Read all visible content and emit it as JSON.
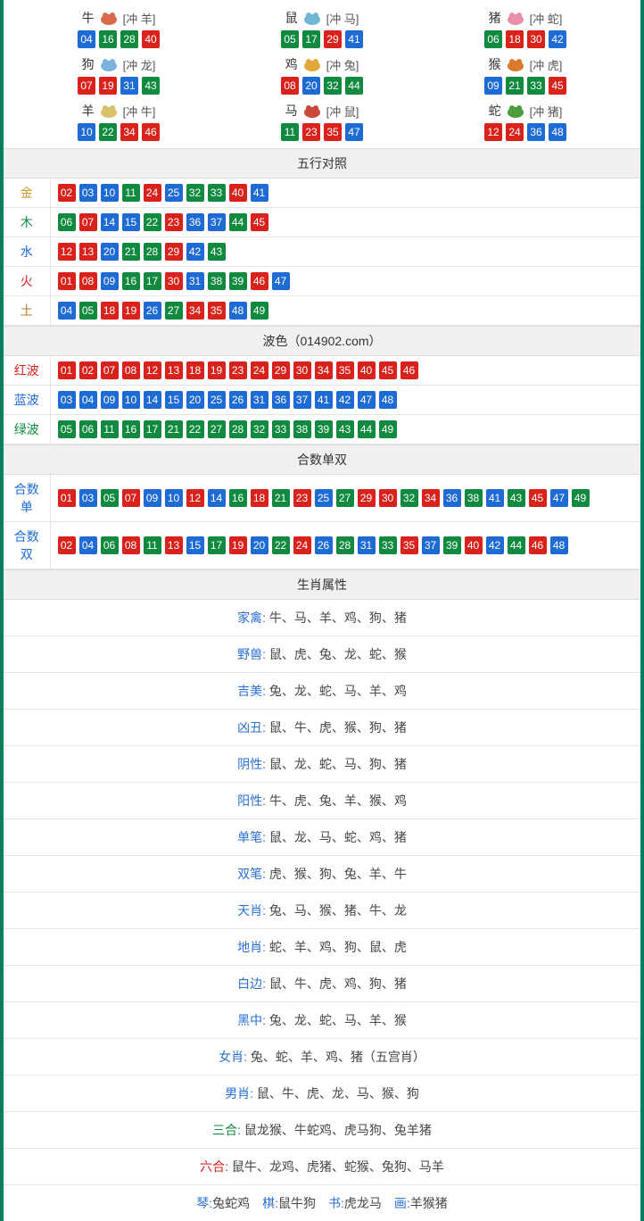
{
  "colors": {
    "red": "#d9221c",
    "blue": "#1e6bd6",
    "green": "#0f8a3f",
    "border": "#008060",
    "header_bg": "#f0f0f0",
    "line": "#e5e5e5",
    "text": "#333333",
    "label_blue": "#2a6fd6"
  },
  "zodiac": [
    {
      "name": "牛",
      "clash": "[冲 羊]",
      "icon_color": "#d96b4a",
      "balls": [
        [
          "04",
          "blue"
        ],
        [
          "16",
          "green"
        ],
        [
          "28",
          "green"
        ],
        [
          "40",
          "red"
        ]
      ]
    },
    {
      "name": "鼠",
      "clash": "[冲 马]",
      "icon_color": "#6fb8d3",
      "balls": [
        [
          "05",
          "green"
        ],
        [
          "17",
          "green"
        ],
        [
          "29",
          "red"
        ],
        [
          "41",
          "blue"
        ]
      ]
    },
    {
      "name": "猪",
      "clash": "[冲 蛇]",
      "icon_color": "#e98fa8",
      "balls": [
        [
          "06",
          "green"
        ],
        [
          "18",
          "red"
        ],
        [
          "30",
          "red"
        ],
        [
          "42",
          "blue"
        ]
      ]
    },
    {
      "name": "狗",
      "clash": "[冲 龙]",
      "icon_color": "#7bb3e0",
      "balls": [
        [
          "07",
          "red"
        ],
        [
          "19",
          "red"
        ],
        [
          "31",
          "blue"
        ],
        [
          "43",
          "green"
        ]
      ]
    },
    {
      "name": "鸡",
      "clash": "[冲 兔]",
      "icon_color": "#e0a83a",
      "balls": [
        [
          "08",
          "red"
        ],
        [
          "20",
          "blue"
        ],
        [
          "32",
          "green"
        ],
        [
          "44",
          "green"
        ]
      ]
    },
    {
      "name": "猴",
      "clash": "[冲 虎]",
      "icon_color": "#d97a2e",
      "balls": [
        [
          "09",
          "blue"
        ],
        [
          "21",
          "green"
        ],
        [
          "33",
          "green"
        ],
        [
          "45",
          "red"
        ]
      ]
    },
    {
      "name": "羊",
      "clash": "[冲 牛]",
      "icon_color": "#d9c06b",
      "balls": [
        [
          "10",
          "blue"
        ],
        [
          "22",
          "green"
        ],
        [
          "34",
          "red"
        ],
        [
          "46",
          "red"
        ]
      ]
    },
    {
      "name": "马",
      "clash": "[冲 鼠]",
      "icon_color": "#c94a3a",
      "balls": [
        [
          "11",
          "green"
        ],
        [
          "23",
          "red"
        ],
        [
          "35",
          "red"
        ],
        [
          "47",
          "blue"
        ]
      ]
    },
    {
      "name": "蛇",
      "clash": "[冲 猪]",
      "icon_color": "#4a9d3a",
      "balls": [
        [
          "12",
          "red"
        ],
        [
          "24",
          "red"
        ],
        [
          "36",
          "blue"
        ],
        [
          "48",
          "blue"
        ]
      ]
    }
  ],
  "sections": {
    "wuxing_title": "五行对照",
    "bose_title": "波色（014902.com）",
    "heshu_title": "合数单双",
    "shuxing_title": "生肖属性"
  },
  "wuxing": [
    {
      "label": "金",
      "label_color": "#c79a2e",
      "balls": [
        [
          "02",
          "red"
        ],
        [
          "03",
          "blue"
        ],
        [
          "10",
          "blue"
        ],
        [
          "11",
          "green"
        ],
        [
          "24",
          "red"
        ],
        [
          "25",
          "blue"
        ],
        [
          "32",
          "green"
        ],
        [
          "33",
          "green"
        ],
        [
          "40",
          "red"
        ],
        [
          "41",
          "blue"
        ]
      ]
    },
    {
      "label": "木",
      "label_color": "#0f8a3f",
      "balls": [
        [
          "06",
          "green"
        ],
        [
          "07",
          "red"
        ],
        [
          "14",
          "blue"
        ],
        [
          "15",
          "blue"
        ],
        [
          "22",
          "green"
        ],
        [
          "23",
          "red"
        ],
        [
          "36",
          "blue"
        ],
        [
          "37",
          "blue"
        ],
        [
          "44",
          "green"
        ],
        [
          "45",
          "red"
        ]
      ]
    },
    {
      "label": "水",
      "label_color": "#1e6bd6",
      "balls": [
        [
          "12",
          "red"
        ],
        [
          "13",
          "red"
        ],
        [
          "20",
          "blue"
        ],
        [
          "21",
          "green"
        ],
        [
          "28",
          "green"
        ],
        [
          "29",
          "red"
        ],
        [
          "42",
          "blue"
        ],
        [
          "43",
          "green"
        ]
      ]
    },
    {
      "label": "火",
      "label_color": "#d9221c",
      "balls": [
        [
          "01",
          "red"
        ],
        [
          "08",
          "red"
        ],
        [
          "09",
          "blue"
        ],
        [
          "16",
          "green"
        ],
        [
          "17",
          "green"
        ],
        [
          "30",
          "red"
        ],
        [
          "31",
          "blue"
        ],
        [
          "38",
          "green"
        ],
        [
          "39",
          "green"
        ],
        [
          "46",
          "red"
        ],
        [
          "47",
          "blue"
        ]
      ]
    },
    {
      "label": "土",
      "label_color": "#b07c2e",
      "balls": [
        [
          "04",
          "blue"
        ],
        [
          "05",
          "green"
        ],
        [
          "18",
          "red"
        ],
        [
          "19",
          "red"
        ],
        [
          "26",
          "blue"
        ],
        [
          "27",
          "green"
        ],
        [
          "34",
          "red"
        ],
        [
          "35",
          "red"
        ],
        [
          "48",
          "blue"
        ],
        [
          "49",
          "green"
        ]
      ]
    }
  ],
  "bose": [
    {
      "label": "红波",
      "label_color": "#d9221c",
      "balls": [
        [
          "01",
          "red"
        ],
        [
          "02",
          "red"
        ],
        [
          "07",
          "red"
        ],
        [
          "08",
          "red"
        ],
        [
          "12",
          "red"
        ],
        [
          "13",
          "red"
        ],
        [
          "18",
          "red"
        ],
        [
          "19",
          "red"
        ],
        [
          "23",
          "red"
        ],
        [
          "24",
          "red"
        ],
        [
          "29",
          "red"
        ],
        [
          "30",
          "red"
        ],
        [
          "34",
          "red"
        ],
        [
          "35",
          "red"
        ],
        [
          "40",
          "red"
        ],
        [
          "45",
          "red"
        ],
        [
          "46",
          "red"
        ]
      ]
    },
    {
      "label": "蓝波",
      "label_color": "#1e6bd6",
      "balls": [
        [
          "03",
          "blue"
        ],
        [
          "04",
          "blue"
        ],
        [
          "09",
          "blue"
        ],
        [
          "10",
          "blue"
        ],
        [
          "14",
          "blue"
        ],
        [
          "15",
          "blue"
        ],
        [
          "20",
          "blue"
        ],
        [
          "25",
          "blue"
        ],
        [
          "26",
          "blue"
        ],
        [
          "31",
          "blue"
        ],
        [
          "36",
          "blue"
        ],
        [
          "37",
          "blue"
        ],
        [
          "41",
          "blue"
        ],
        [
          "42",
          "blue"
        ],
        [
          "47",
          "blue"
        ],
        [
          "48",
          "blue"
        ]
      ]
    },
    {
      "label": "绿波",
      "label_color": "#0f8a3f",
      "balls": [
        [
          "05",
          "green"
        ],
        [
          "06",
          "green"
        ],
        [
          "11",
          "green"
        ],
        [
          "16",
          "green"
        ],
        [
          "17",
          "green"
        ],
        [
          "21",
          "green"
        ],
        [
          "22",
          "green"
        ],
        [
          "27",
          "green"
        ],
        [
          "28",
          "green"
        ],
        [
          "32",
          "green"
        ],
        [
          "33",
          "green"
        ],
        [
          "38",
          "green"
        ],
        [
          "39",
          "green"
        ],
        [
          "43",
          "green"
        ],
        [
          "44",
          "green"
        ],
        [
          "49",
          "green"
        ]
      ]
    }
  ],
  "heshu": [
    {
      "label": "合数单",
      "label_color": "#1e6bd6",
      "balls": [
        [
          "01",
          "red"
        ],
        [
          "03",
          "blue"
        ],
        [
          "05",
          "green"
        ],
        [
          "07",
          "red"
        ],
        [
          "09",
          "blue"
        ],
        [
          "10",
          "blue"
        ],
        [
          "12",
          "red"
        ],
        [
          "14",
          "blue"
        ],
        [
          "16",
          "green"
        ],
        [
          "18",
          "red"
        ],
        [
          "21",
          "green"
        ],
        [
          "23",
          "red"
        ],
        [
          "25",
          "blue"
        ],
        [
          "27",
          "green"
        ],
        [
          "29",
          "red"
        ],
        [
          "30",
          "red"
        ],
        [
          "32",
          "green"
        ],
        [
          "34",
          "red"
        ],
        [
          "36",
          "blue"
        ],
        [
          "38",
          "green"
        ],
        [
          "41",
          "blue"
        ],
        [
          "43",
          "green"
        ],
        [
          "45",
          "red"
        ],
        [
          "47",
          "blue"
        ],
        [
          "49",
          "green"
        ]
      ]
    },
    {
      "label": "合数双",
      "label_color": "#1e6bd6",
      "balls": [
        [
          "02",
          "red"
        ],
        [
          "04",
          "blue"
        ],
        [
          "06",
          "green"
        ],
        [
          "08",
          "red"
        ],
        [
          "11",
          "green"
        ],
        [
          "13",
          "red"
        ],
        [
          "15",
          "blue"
        ],
        [
          "17",
          "green"
        ],
        [
          "19",
          "red"
        ],
        [
          "20",
          "blue"
        ],
        [
          "22",
          "green"
        ],
        [
          "24",
          "red"
        ],
        [
          "26",
          "blue"
        ],
        [
          "28",
          "green"
        ],
        [
          "31",
          "blue"
        ],
        [
          "33",
          "green"
        ],
        [
          "35",
          "red"
        ],
        [
          "37",
          "blue"
        ],
        [
          "39",
          "green"
        ],
        [
          "40",
          "red"
        ],
        [
          "42",
          "blue"
        ],
        [
          "44",
          "green"
        ],
        [
          "46",
          "red"
        ],
        [
          "48",
          "blue"
        ]
      ]
    }
  ],
  "shuxing": [
    {
      "label": "家禽:",
      "label_color": "#2a6fd6",
      "value": "牛、马、羊、鸡、狗、猪"
    },
    {
      "label": "野兽:",
      "label_color": "#2a6fd6",
      "value": "鼠、虎、兔、龙、蛇、猴"
    },
    {
      "label": "吉美:",
      "label_color": "#2a6fd6",
      "value": "兔、龙、蛇、马、羊、鸡"
    },
    {
      "label": "凶丑:",
      "label_color": "#2a6fd6",
      "value": "鼠、牛、虎、猴、狗、猪"
    },
    {
      "label": "阴性:",
      "label_color": "#2a6fd6",
      "value": "鼠、龙、蛇、马、狗、猪"
    },
    {
      "label": "阳性:",
      "label_color": "#2a6fd6",
      "value": "牛、虎、兔、羊、猴、鸡"
    },
    {
      "label": "单笔:",
      "label_color": "#2a6fd6",
      "value": "鼠、龙、马、蛇、鸡、猪"
    },
    {
      "label": "双笔:",
      "label_color": "#2a6fd6",
      "value": "虎、猴、狗、兔、羊、牛"
    },
    {
      "label": "天肖:",
      "label_color": "#2a6fd6",
      "value": "兔、马、猴、猪、牛、龙"
    },
    {
      "label": "地肖:",
      "label_color": "#2a6fd6",
      "value": "蛇、羊、鸡、狗、鼠、虎"
    },
    {
      "label": "白边:",
      "label_color": "#2a6fd6",
      "value": "鼠、牛、虎、鸡、狗、猪"
    },
    {
      "label": "黑中:",
      "label_color": "#2a6fd6",
      "value": "兔、龙、蛇、马、羊、猴"
    },
    {
      "label": "女肖:",
      "label_color": "#2a6fd6",
      "value": "兔、蛇、羊、鸡、猪（五宫肖）"
    },
    {
      "label": "男肖:",
      "label_color": "#2a6fd6",
      "value": "鼠、牛、虎、龙、马、猴、狗"
    },
    {
      "label": "三合:",
      "label_color": "#0f8a3f",
      "value": "鼠龙猴、牛蛇鸡、虎马狗、兔羊猪"
    },
    {
      "label": "六合:",
      "label_color": "#d9221c",
      "value": "鼠牛、龙鸡、虎猪、蛇猴、兔狗、马羊"
    }
  ],
  "footer_parts": [
    {
      "label": "琴:",
      "value": "兔蛇鸡"
    },
    {
      "label": "棋:",
      "value": "鼠牛狗"
    },
    {
      "label": "书:",
      "value": "虎龙马"
    },
    {
      "label": "画:",
      "value": "羊猴猪"
    }
  ]
}
